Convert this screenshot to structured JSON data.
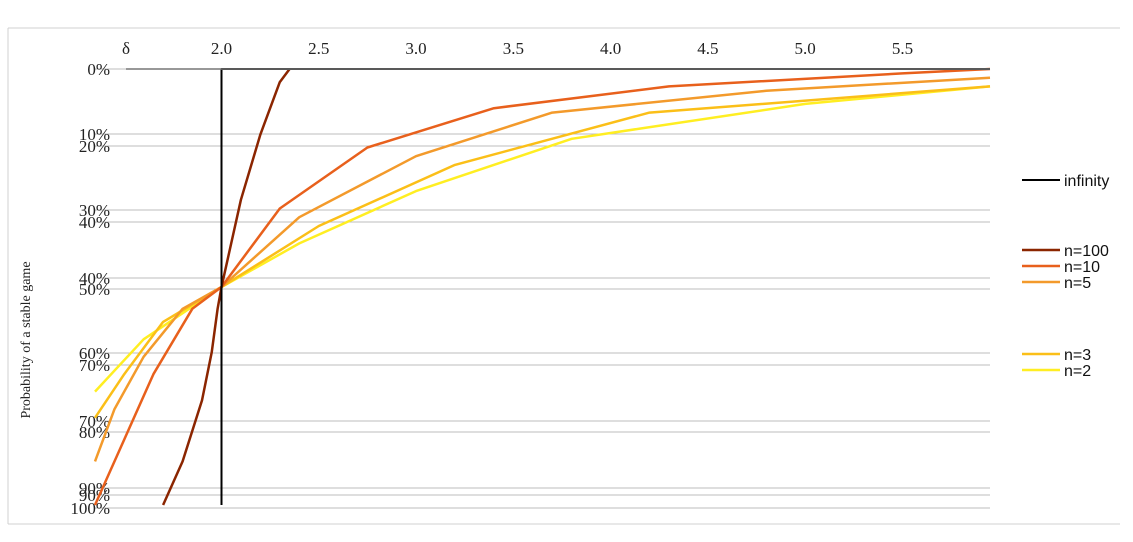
{
  "chart_data": {
    "type": "line",
    "title": "",
    "xlabel": "δ",
    "ylabel": "Probability of a stable game",
    "x_ticks": [
      "2.0",
      "2.5",
      "3.0",
      "3.5",
      "4.0",
      "4.5",
      "5.0",
      "5.5"
    ],
    "y_ticks": [
      "0%",
      "10%",
      "20%",
      "30%",
      "40%",
      "40%",
      "50%",
      "60%",
      "70%",
      "70%",
      "80%",
      "90%",
      "90%",
      "100%"
    ],
    "xlim": [
      1.35,
      5.95
    ],
    "ylim": [
      0,
      100
    ],
    "grid": true,
    "legend_position": "right",
    "colors": {
      "infinity": "#000000",
      "n=100": "#8b2500",
      "n=10": "#e8601c",
      "n=5": "#f39a2b",
      "n=3": "#fbbf18",
      "n=2": "#ffee22"
    },
    "legend": [
      {
        "label": "infinity",
        "color": "#000000"
      },
      {
        "label": "n=100",
        "color": "#8b2500"
      },
      {
        "label": "n=10",
        "color": "#e8601c"
      },
      {
        "label": "n=5",
        "color": "#f39a2b"
      },
      {
        "label": "n=3",
        "color": "#fbbf18"
      },
      {
        "label": "n=2",
        "color": "#ffee22"
      }
    ],
    "series": [
      {
        "name": "infinity",
        "x": [
          2.0,
          2.0,
          5.95
        ],
        "y": [
          100,
          0,
          0
        ]
      },
      {
        "name": "n=100",
        "x": [
          1.7,
          1.8,
          1.9,
          1.95,
          1.98,
          2.0,
          2.05,
          2.1,
          2.2,
          2.3,
          2.35
        ],
        "y": [
          100,
          90,
          76,
          65,
          55,
          50,
          40,
          30,
          15,
          3,
          0
        ]
      },
      {
        "name": "n=10",
        "x": [
          1.35,
          1.5,
          1.65,
          1.85,
          2.0,
          2.3,
          2.75,
          3.4,
          4.3,
          5.5,
          5.95
        ],
        "y": [
          100,
          85,
          70,
          55,
          50,
          32,
          18,
          9,
          4,
          1,
          0
        ]
      },
      {
        "name": "n=5",
        "x": [
          1.35,
          1.45,
          1.6,
          1.8,
          2.0,
          2.4,
          3.0,
          3.7,
          4.8,
          5.95
        ],
        "y": [
          90,
          78,
          66,
          55,
          50,
          34,
          20,
          10,
          5,
          2
        ]
      },
      {
        "name": "n=3",
        "x": [
          1.35,
          1.5,
          1.7,
          2.0,
          2.5,
          3.2,
          4.2,
          5.95
        ],
        "y": [
          80,
          70,
          58,
          50,
          36,
          22,
          10,
          4
        ]
      },
      {
        "name": "n=2",
        "x": [
          1.35,
          1.6,
          1.8,
          2.0,
          2.4,
          3.0,
          3.8,
          5.0,
          5.95
        ],
        "y": [
          74,
          62,
          56,
          50,
          40,
          28,
          16,
          8,
          4
        ]
      }
    ]
  }
}
